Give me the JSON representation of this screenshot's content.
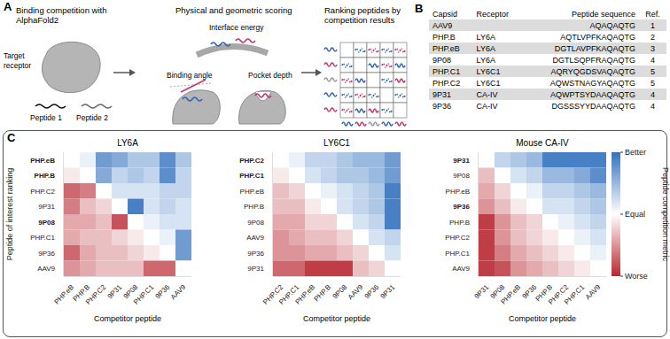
{
  "panel_a": {
    "label": "A",
    "steps": [
      {
        "title": "Binding competition with AlphaFold2",
        "texts": [
          "Target receptor",
          "Peptide 1",
          "Peptide 2"
        ]
      },
      {
        "title": "Physical and geometric scoring",
        "texts": [
          "Interface energy",
          "Binding angle",
          "Pocket depth"
        ]
      },
      {
        "title": "Ranking peptides by competition results"
      }
    ]
  },
  "panel_b": {
    "label": "B",
    "table": {
      "header": [
        "Capsid",
        "Receptor",
        "Peptide sequence",
        "Ref."
      ],
      "rows": [
        [
          "AAV9",
          null,
          "AQAQAQTG",
          1
        ],
        [
          "PHP.B",
          "LY6A",
          "AQTLVPFKAQAQTG",
          2
        ],
        [
          "PHP.eB",
          "LY6A",
          "DGTLAVPFKAQAQTG",
          3
        ],
        [
          "9P08",
          "LY6A",
          "DGTLSQPFRAQAQTG",
          4
        ],
        [
          "PHP.C1",
          "LY6C1",
          "AQRYQGDSVAQAQTG",
          5
        ],
        [
          "PHP.C2",
          "LY6C1",
          "AQWSTNAGYAQAQTG",
          5
        ],
        [
          "9P31",
          "CA-IV",
          "AQWPTSYDAAQAQTG",
          4
        ],
        [
          "9P36",
          "CA-IV",
          "DGSSSYYDAAQAQTG",
          4
        ]
      ]
    }
  },
  "panel_c": {
    "label": "C",
    "y_label": "Peptide of interest ranking",
    "x_label": "Competitor peptide",
    "colorbar": {
      "title": "Peptide competition metric",
      "range": [
        -1,
        1
      ],
      "ticks": [
        {
          "value": 1,
          "label": "Better"
        },
        {
          "value": 0,
          "label": "Equal"
        },
        {
          "value": -1,
          "label": "Worse"
        }
      ]
    }
  },
  "chart_data": [
    {
      "type": "heatmap",
      "title": "LY6A",
      "rows": [
        "PHP.eB",
        "PHP.B",
        "PHP.C2",
        "9P31",
        "9P08",
        "PHP.C1",
        "9P36",
        "AAV9"
      ],
      "columns": [
        "PHP.eB",
        "PHP.B",
        "PHP.C2",
        "9P31",
        "9P08",
        "PHP.C1",
        "9P36",
        "AAV9"
      ],
      "highlight": [
        "PHP.eB",
        "PHP.B",
        "9P08"
      ],
      "cells": [
        [
          0,
          0.1,
          0.7,
          0.6,
          0.4,
          0.4,
          0.8,
          0.4
        ],
        [
          -0.1,
          0,
          0.6,
          0.3,
          0.4,
          0.3,
          0.8,
          0.3
        ],
        [
          -0.7,
          -0.6,
          0,
          0.2,
          0.2,
          0.2,
          0.3,
          0.3
        ],
        [
          -0.6,
          -0.3,
          -0.2,
          0,
          0.9,
          0.2,
          0.3,
          0.2
        ],
        [
          -0.4,
          -0.4,
          -0.3,
          -0.8,
          0,
          0.1,
          0.2,
          0.2
        ],
        [
          -0.4,
          -0.3,
          -0.3,
          -0.2,
          -0.1,
          0,
          0.1,
          0.7
        ],
        [
          -0.7,
          -0.4,
          -0.3,
          -0.3,
          -0.2,
          -0.1,
          0,
          0.7
        ],
        [
          -0.5,
          -0.4,
          -0.3,
          -0.3,
          -0.3,
          -0.7,
          -0.7,
          0
        ]
      ]
    },
    {
      "type": "heatmap",
      "title": "LY6C1",
      "rows": [
        "PHP.C2",
        "PHP.C1",
        "PHP.eB",
        "PHP.B",
        "9P08",
        "AAV9",
        "9P36",
        "9P31"
      ],
      "columns": [
        "PHP.C2",
        "PHP.C1",
        "PHP.eB",
        "PHP.B",
        "9P08",
        "AAV9",
        "9P36",
        "9P31"
      ],
      "highlight": [
        "PHP.C2",
        "PHP.C1"
      ],
      "cells": [
        [
          0,
          0.1,
          0.3,
          0.3,
          0.4,
          0.5,
          0.5,
          0.7
        ],
        [
          -0.1,
          0,
          0.2,
          0.3,
          0.4,
          0.4,
          0.5,
          0.7
        ],
        [
          -0.3,
          -0.2,
          0,
          0.1,
          0.2,
          0.3,
          0.4,
          0.9
        ],
        [
          -0.3,
          -0.3,
          -0.1,
          0,
          0.2,
          0.3,
          0.4,
          0.9
        ],
        [
          -0.4,
          -0.4,
          -0.2,
          -0.2,
          0,
          0.2,
          0.3,
          0.9
        ],
        [
          -0.5,
          -0.4,
          -0.3,
          -0.3,
          -0.2,
          0,
          0.2,
          0.3
        ],
        [
          -0.5,
          -0.5,
          -0.4,
          -0.4,
          -0.3,
          -0.2,
          0,
          0.2
        ],
        [
          -0.7,
          -0.7,
          -0.9,
          -0.9,
          -0.9,
          -0.3,
          -0.2,
          0
        ]
      ]
    },
    {
      "type": "heatmap",
      "title": "Mouse CA-IV",
      "rows": [
        "9P31",
        "9P08",
        "PHP.eB",
        "9P36",
        "PHP.B",
        "PHP.C2",
        "PHP.C1",
        "AAV9"
      ],
      "columns": [
        "9P31",
        "9P08",
        "PHP.eB",
        "9P36",
        "PHP.B",
        "PHP.C2",
        "PHP.C1",
        "AAV9"
      ],
      "highlight": [
        "9P31",
        "9P36"
      ],
      "cells": [
        [
          0,
          0.3,
          0.4,
          0.5,
          0.9,
          0.9,
          0.9,
          0.9
        ],
        [
          -0.3,
          0,
          0.2,
          0.3,
          0.5,
          0.5,
          0.6,
          0.8
        ],
        [
          -0.4,
          -0.2,
          0,
          0.1,
          0.3,
          0.3,
          0.4,
          0.5
        ],
        [
          -0.5,
          -0.3,
          -0.1,
          0,
          0.2,
          0.2,
          0.3,
          0.4
        ],
        [
          -0.9,
          -0.5,
          -0.3,
          -0.2,
          0,
          0.1,
          0.2,
          0.3
        ],
        [
          -0.9,
          -0.5,
          -0.3,
          -0.2,
          -0.1,
          0,
          0.1,
          0.2
        ],
        [
          -0.9,
          -0.6,
          -0.4,
          -0.3,
          -0.2,
          -0.1,
          0,
          0.1
        ],
        [
          -0.9,
          -0.8,
          -0.5,
          -0.4,
          -0.3,
          -0.2,
          -0.1,
          0
        ]
      ]
    }
  ]
}
